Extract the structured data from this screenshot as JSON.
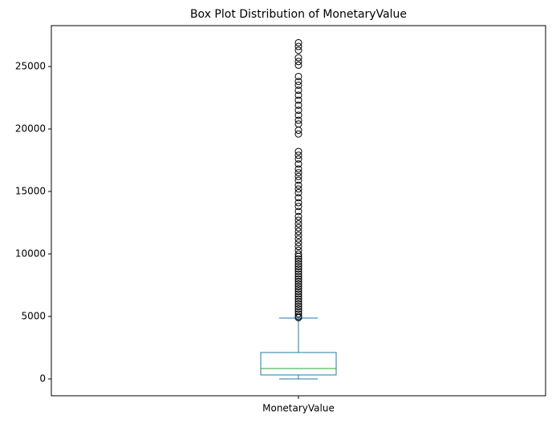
{
  "chart_data": {
    "type": "box",
    "title": "Box Plot Distribution of MonetaryValue",
    "categories": [
      "MonetaryValue"
    ],
    "whisker_low": 0,
    "q1": 320,
    "median": 833,
    "q3": 2115,
    "whisker_high": 4870,
    "outliers": [
      26900,
      26600,
      26300,
      25700,
      25400,
      25100,
      24200,
      23800,
      23500,
      23100,
      22700,
      22300,
      21900,
      21500,
      21100,
      20700,
      20400,
      19900,
      19600,
      18200,
      17900,
      17600,
      17200,
      16800,
      16500,
      16200,
      15900,
      15500,
      15200,
      14900,
      14500,
      14100,
      13800,
      13400,
      13000,
      12700,
      12400,
      12100,
      11800,
      11500,
      11200,
      10900,
      10600,
      10300,
      10000,
      9800,
      9600,
      9400,
      9200,
      9000,
      8800,
      8600,
      8400,
      8200,
      8000,
      7800,
      7600,
      7400,
      7200,
      7000,
      6800,
      6600,
      6400,
      6200,
      6000,
      5800,
      5600,
      5400,
      5200,
      5000,
      4900
    ],
    "box_color": "#1f77b4",
    "median_color": "#2ca02c",
    "outlier_color": "#000000",
    "ylim": [
      -1346,
      28269
    ],
    "yticks": [
      0,
      5000,
      10000,
      15000,
      20000,
      25000
    ]
  }
}
